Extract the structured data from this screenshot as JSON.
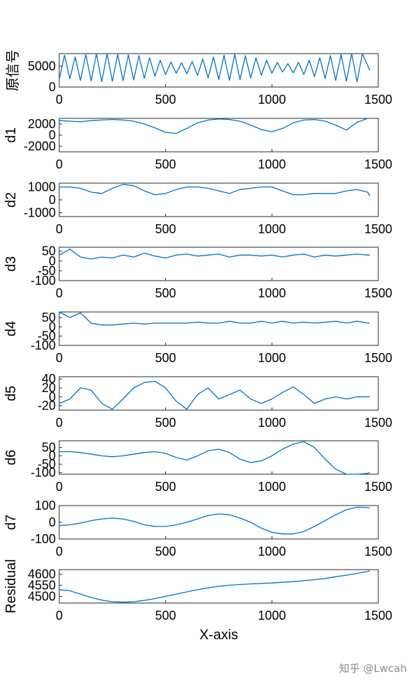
{
  "watermark": "知乎 @Lwcah",
  "chart_data": [
    {
      "type": "line",
      "ylabel": "原信号",
      "xlim": [
        0,
        1500
      ],
      "xticks": [
        0,
        500,
        1000,
        1500
      ],
      "ylim": [
        0,
        8000
      ],
      "yticks": [
        0,
        5000
      ],
      "ytick_labels": [
        "0",
        "5000"
      ],
      "color": "#0072BD",
      "x": [
        0,
        25,
        50,
        75,
        100,
        125,
        150,
        175,
        200,
        225,
        250,
        275,
        300,
        325,
        350,
        375,
        400,
        425,
        450,
        475,
        500,
        525,
        550,
        575,
        600,
        625,
        650,
        675,
        700,
        725,
        750,
        775,
        800,
        825,
        850,
        875,
        900,
        925,
        950,
        975,
        1000,
        1025,
        1050,
        1075,
        1100,
        1125,
        1150,
        1175,
        1200,
        1225,
        1250,
        1275,
        1300,
        1325,
        1350,
        1375,
        1400,
        1425,
        1460
      ],
      "y": [
        1800,
        7600,
        2000,
        7200,
        1600,
        7800,
        1500,
        7900,
        1300,
        8000,
        1400,
        7800,
        1500,
        7700,
        1700,
        7500,
        2100,
        7000,
        2600,
        6400,
        3000,
        6000,
        3300,
        5800,
        3200,
        6100,
        2800,
        6700,
        2200,
        7200,
        1800,
        7600,
        1600,
        7800,
        1800,
        7500,
        2200,
        7000,
        2800,
        6400,
        3300,
        5900,
        3600,
        5600,
        3400,
        5900,
        3000,
        6400,
        2500,
        7000,
        2000,
        7500,
        1600,
        7800,
        1400,
        8000,
        1200,
        8100,
        4000
      ]
    },
    {
      "type": "line",
      "ylabel": "d1",
      "xlim": [
        0,
        1500
      ],
      "xticks": [
        0,
        500,
        1000,
        1500
      ],
      "ylim": [
        -3000,
        3000
      ],
      "yticks": [
        -2000,
        0,
        2000
      ],
      "ytick_labels": [
        "-2000",
        "0",
        "2000"
      ],
      "color": "#0072BD",
      "x": [
        0,
        50,
        100,
        150,
        200,
        250,
        300,
        350,
        400,
        450,
        500,
        550,
        600,
        650,
        700,
        750,
        800,
        850,
        900,
        950,
        1000,
        1050,
        1100,
        1150,
        1200,
        1250,
        1300,
        1350,
        1400,
        1450,
        1460
      ],
      "y": [
        2600,
        2500,
        2400,
        2600,
        2700,
        2800,
        2700,
        2500,
        2000,
        1300,
        500,
        300,
        1200,
        2200,
        2700,
        2900,
        2800,
        2500,
        1800,
        1000,
        600,
        1200,
        2200,
        2700,
        2800,
        2500,
        1800,
        900,
        2300,
        3000,
        3000
      ]
    },
    {
      "type": "line",
      "ylabel": "d2",
      "xlim": [
        0,
        1500
      ],
      "xticks": [
        0,
        500,
        1000,
        1500
      ],
      "ylim": [
        -1300,
        1300
      ],
      "yticks": [
        -1000,
        0,
        1000
      ],
      "ytick_labels": [
        "-1000",
        "0",
        "1000"
      ],
      "color": "#0072BD",
      "x": [
        0,
        50,
        100,
        150,
        200,
        250,
        300,
        350,
        400,
        450,
        500,
        550,
        600,
        650,
        700,
        750,
        800,
        850,
        900,
        950,
        1000,
        1050,
        1100,
        1150,
        1200,
        1250,
        1300,
        1350,
        1400,
        1450,
        1460
      ],
      "y": [
        1000,
        1000,
        900,
        600,
        500,
        900,
        1200,
        1100,
        700,
        400,
        500,
        800,
        1000,
        1000,
        900,
        700,
        500,
        800,
        900,
        1000,
        1000,
        700,
        400,
        400,
        500,
        500,
        500,
        700,
        800,
        600,
        300
      ]
    },
    {
      "type": "line",
      "ylabel": "d3",
      "xlim": [
        0,
        1500
      ],
      "xticks": [
        0,
        500,
        1000,
        1500
      ],
      "ylim": [
        -100,
        70
      ],
      "yticks": [
        -100,
        -50,
        0,
        50
      ],
      "ytick_labels": [
        "-100",
        "-50",
        "0",
        "50"
      ],
      "color": "#0072BD",
      "x": [
        0,
        50,
        100,
        150,
        200,
        250,
        300,
        350,
        400,
        450,
        500,
        550,
        600,
        650,
        700,
        750,
        800,
        850,
        900,
        950,
        1000,
        1050,
        1100,
        1150,
        1200,
        1250,
        1300,
        1350,
        1400,
        1450,
        1460
      ],
      "y": [
        30,
        60,
        20,
        10,
        20,
        15,
        30,
        20,
        40,
        25,
        15,
        30,
        35,
        25,
        30,
        35,
        20,
        30,
        30,
        25,
        30,
        20,
        30,
        35,
        20,
        30,
        25,
        30,
        35,
        30,
        30
      ]
    },
    {
      "type": "line",
      "ylabel": "d4",
      "xlim": [
        0,
        1500
      ],
      "xticks": [
        0,
        500,
        1000,
        1500
      ],
      "ylim": [
        -100,
        80
      ],
      "yticks": [
        -100,
        -50,
        0,
        50
      ],
      "ytick_labels": [
        "-100",
        "-50",
        "0",
        "50"
      ],
      "color": "#0072BD",
      "x": [
        0,
        50,
        100,
        150,
        200,
        250,
        300,
        350,
        400,
        450,
        500,
        550,
        600,
        650,
        700,
        750,
        800,
        850,
        900,
        950,
        1000,
        1050,
        1100,
        1150,
        1200,
        1250,
        1300,
        1350,
        1400,
        1450,
        1460
      ],
      "y": [
        100,
        50,
        75,
        20,
        10,
        10,
        15,
        20,
        15,
        20,
        20,
        20,
        20,
        25,
        20,
        20,
        30,
        20,
        20,
        30,
        20,
        30,
        20,
        25,
        20,
        25,
        30,
        20,
        30,
        20,
        20
      ]
    },
    {
      "type": "line",
      "ylabel": "d5",
      "xlim": [
        0,
        1500
      ],
      "xticks": [
        0,
        500,
        1000,
        1500
      ],
      "ylim": [
        -30,
        45
      ],
      "yticks": [
        -20,
        0,
        20,
        40
      ],
      "ytick_labels": [
        "-20",
        "0",
        "20",
        "40"
      ],
      "color": "#0072BD",
      "x": [
        0,
        50,
        100,
        150,
        200,
        250,
        300,
        350,
        400,
        450,
        500,
        550,
        600,
        650,
        700,
        750,
        800,
        850,
        900,
        950,
        1000,
        1050,
        1100,
        1150,
        1200,
        1250,
        1300,
        1350,
        1400,
        1450,
        1460
      ],
      "y": [
        -15,
        -5,
        20,
        15,
        -15,
        -28,
        -5,
        20,
        32,
        35,
        20,
        -10,
        -28,
        5,
        20,
        -5,
        5,
        15,
        -5,
        -15,
        -5,
        10,
        22,
        5,
        -15,
        -5,
        0,
        -5,
        0,
        0,
        0
      ]
    },
    {
      "type": "line",
      "ylabel": "d6",
      "xlim": [
        0,
        1500
      ],
      "xticks": [
        0,
        500,
        1000,
        1500
      ],
      "ylim": [
        -110,
        90
      ],
      "yticks": [
        -100,
        -50,
        0,
        50
      ],
      "ytick_labels": [
        "-100",
        "-50",
        "0",
        "50"
      ],
      "color": "#0072BD",
      "x": [
        0,
        50,
        100,
        150,
        200,
        250,
        300,
        350,
        400,
        450,
        500,
        550,
        600,
        650,
        700,
        750,
        800,
        850,
        900,
        950,
        1000,
        1050,
        1100,
        1150,
        1200,
        1250,
        1300,
        1350,
        1400,
        1450,
        1460
      ],
      "y": [
        25,
        25,
        20,
        10,
        0,
        -5,
        0,
        10,
        20,
        25,
        15,
        -10,
        -25,
        0,
        30,
        40,
        20,
        -20,
        -40,
        -30,
        0,
        40,
        70,
        85,
        50,
        -20,
        -80,
        -110,
        -110,
        -105,
        -100
      ]
    },
    {
      "type": "line",
      "ylabel": "d7",
      "xlim": [
        0,
        1500
      ],
      "xticks": [
        0,
        500,
        1000,
        1500
      ],
      "ylim": [
        -100,
        100
      ],
      "yticks": [
        -100,
        0,
        100
      ],
      "ytick_labels": [
        "-100",
        "0",
        "100"
      ],
      "color": "#0072BD",
      "x": [
        0,
        50,
        100,
        150,
        200,
        250,
        300,
        350,
        400,
        450,
        500,
        550,
        600,
        650,
        700,
        750,
        800,
        850,
        900,
        950,
        1000,
        1050,
        1100,
        1150,
        1200,
        1250,
        1300,
        1350,
        1400,
        1450,
        1460
      ],
      "y": [
        -20,
        -15,
        -5,
        10,
        20,
        25,
        20,
        5,
        -15,
        -25,
        -25,
        -15,
        0,
        20,
        40,
        50,
        45,
        25,
        0,
        -35,
        -60,
        -70,
        -70,
        -55,
        -25,
        10,
        45,
        75,
        90,
        88,
        85
      ]
    },
    {
      "type": "line",
      "ylabel": "Residual",
      "xlabel": "X-axis",
      "xlim": [
        0,
        1500
      ],
      "xticks": [
        0,
        500,
        1000,
        1500
      ],
      "ylim": [
        4470,
        4620
      ],
      "yticks": [
        4500,
        4550,
        4600
      ],
      "ytick_labels": [
        "4500",
        "4550",
        "4600"
      ],
      "color": "#0072BD",
      "x": [
        0,
        50,
        100,
        150,
        200,
        250,
        300,
        350,
        400,
        450,
        500,
        550,
        600,
        650,
        700,
        750,
        800,
        850,
        900,
        950,
        1000,
        1050,
        1100,
        1150,
        1200,
        1250,
        1300,
        1350,
        1400,
        1450,
        1460
      ],
      "y": [
        4530,
        4525,
        4510,
        4495,
        4483,
        4476,
        4474,
        4476,
        4482,
        4490,
        4500,
        4510,
        4520,
        4530,
        4538,
        4545,
        4550,
        4553,
        4556,
        4558,
        4560,
        4563,
        4566,
        4570,
        4575,
        4580,
        4588,
        4595,
        4603,
        4612,
        4615
      ]
    }
  ]
}
